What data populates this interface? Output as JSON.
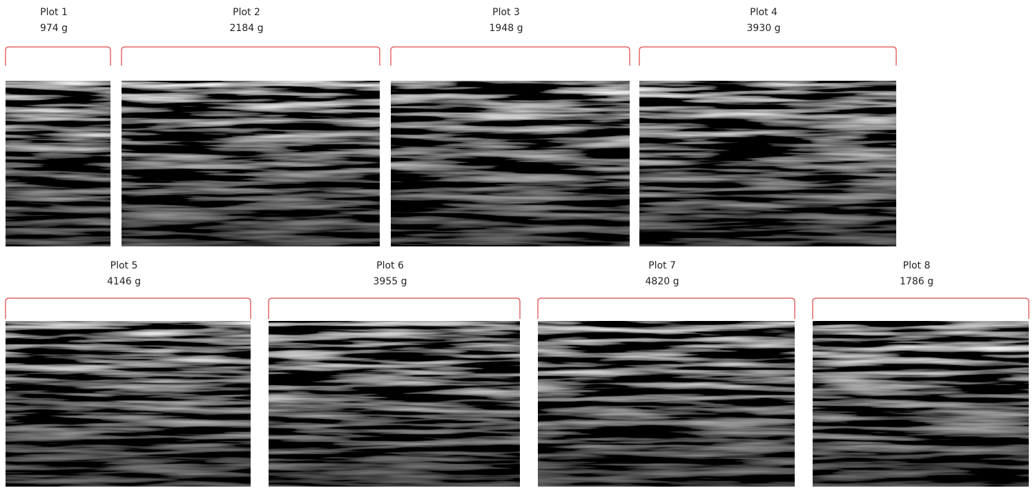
{
  "plots": [
    {
      "label": "Plot 1",
      "weight": "974 g"
    },
    {
      "label": "Plot 2",
      "weight": "2184 g"
    },
    {
      "label": "Plot 3",
      "weight": "1948 g"
    },
    {
      "label": "Plot 4",
      "weight": "3930 g"
    },
    {
      "label": "Plot 5",
      "weight": "4146 g"
    },
    {
      "label": "Plot 6",
      "weight": "3955 g"
    },
    {
      "label": "Plot 7",
      "weight": "4820 g"
    },
    {
      "label": "Plot 8",
      "weight": "1786 g"
    }
  ]
}
